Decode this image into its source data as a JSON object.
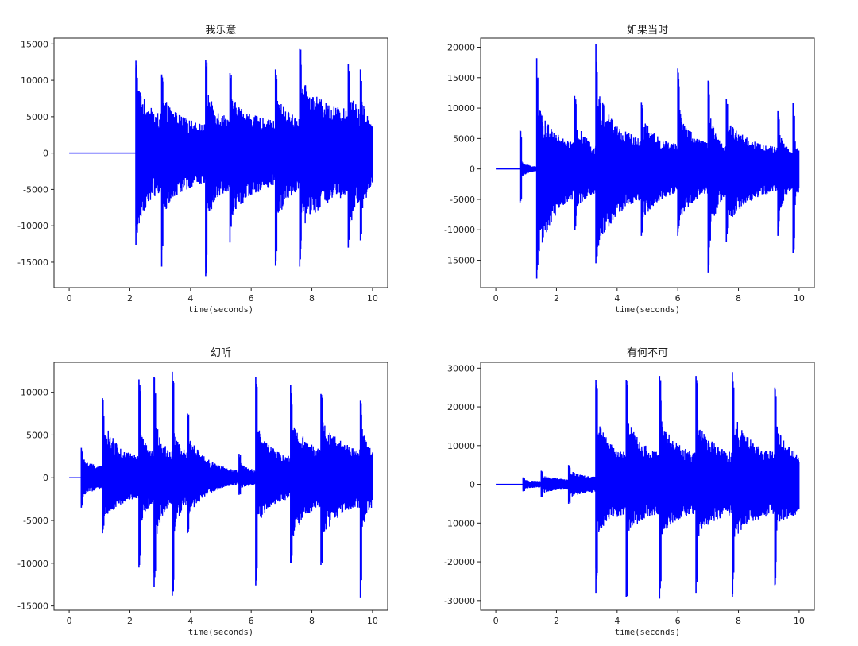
{
  "chart_data": [
    {
      "type": "line",
      "title": "我乐意",
      "xlabel": "time(seconds)",
      "ylabel": "",
      "xlim": [
        -0.5,
        10.5
      ],
      "ylim": [
        -18500,
        15800
      ],
      "xticks": [
        0,
        2,
        4,
        6,
        8,
        10
      ],
      "yticks": [
        15000,
        10000,
        5000,
        0,
        -5000,
        -10000,
        -15000
      ],
      "grid": false,
      "series": [
        {
          "color": "#0000ff",
          "duration": 10,
          "onsets": [
            {
              "t": 2.2,
              "top": 12700,
              "bottom": -12600,
              "sustain_top": 11000,
              "sustain_bottom": -12000,
              "floor": 5000,
              "end": 2.9
            },
            {
              "t": 3.05,
              "top": 10800,
              "bottom": -15600,
              "sustain_top": 8000,
              "sustain_bottom": -9000,
              "floor": 3500,
              "end": 4.5
            },
            {
              "t": 4.5,
              "top": 12800,
              "bottom": -16900,
              "sustain_top": 9000,
              "sustain_bottom": -10000,
              "floor": 4500,
              "end": 5.3
            },
            {
              "t": 5.3,
              "top": 11000,
              "bottom": -12300,
              "sustain_top": 8000,
              "sustain_bottom": -9500,
              "floor": 4000,
              "end": 6.8
            },
            {
              "t": 6.8,
              "top": 11500,
              "bottom": -15500,
              "sustain_top": 8500,
              "sustain_bottom": -10500,
              "floor": 4500,
              "end": 7.6
            },
            {
              "t": 7.6,
              "top": 14300,
              "bottom": -15600,
              "sustain_top": 10500,
              "sustain_bottom": -11000,
              "floor": 5500,
              "end": 9.2
            },
            {
              "t": 9.2,
              "top": 12300,
              "bottom": -13000,
              "sustain_top": 9500,
              "sustain_bottom": -12000,
              "floor": 4500,
              "end": 9.9
            },
            {
              "t": 9.6,
              "top": 11500,
              "bottom": -12000,
              "sustain_top": 9000,
              "sustain_bottom": -11000,
              "floor": 4000,
              "end": 10.0
            }
          ],
          "silence_before": 2.2,
          "noise_floor": 0
        }
      ]
    },
    {
      "type": "line",
      "title": "如果当时",
      "xlabel": "time(seconds)",
      "ylabel": "",
      "xlim": [
        -0.5,
        10.5
      ],
      "ylim": [
        -19500,
        21500
      ],
      "xticks": [
        0,
        2,
        4,
        6,
        8,
        10
      ],
      "yticks": [
        20000,
        15000,
        10000,
        5000,
        0,
        -5000,
        -10000,
        -15000
      ],
      "grid": false,
      "series": [
        {
          "color": "#0000ff",
          "duration": 10,
          "onsets": [
            {
              "t": 0.8,
              "top": 6300,
              "bottom": -5500,
              "sustain_top": 1500,
              "sustain_bottom": -1500,
              "floor": 300,
              "end": 1.35
            },
            {
              "t": 1.35,
              "top": 18200,
              "bottom": -18000,
              "sustain_top": 11000,
              "sustain_bottom": -16000,
              "floor": 3500,
              "end": 2.6
            },
            {
              "t": 2.6,
              "top": 12000,
              "bottom": -10000,
              "sustain_top": 9000,
              "sustain_bottom": -8000,
              "floor": 3500,
              "end": 3.3
            },
            {
              "t": 3.3,
              "top": 20500,
              "bottom": -15500,
              "sustain_top": 14000,
              "sustain_bottom": -14500,
              "floor": 4000,
              "end": 4.8
            },
            {
              "t": 4.8,
              "top": 11000,
              "bottom": -11000,
              "sustain_top": 9000,
              "sustain_bottom": -9000,
              "floor": 3500,
              "end": 6.0
            },
            {
              "t": 6.0,
              "top": 16500,
              "bottom": -11000,
              "sustain_top": 11000,
              "sustain_bottom": -9500,
              "floor": 3500,
              "end": 7.0
            },
            {
              "t": 7.0,
              "top": 14500,
              "bottom": -17000,
              "sustain_top": 10500,
              "sustain_bottom": -15000,
              "floor": 3000,
              "end": 7.6
            },
            {
              "t": 7.6,
              "top": 11500,
              "bottom": -12000,
              "sustain_top": 8500,
              "sustain_bottom": -9500,
              "floor": 3000,
              "end": 9.3
            },
            {
              "t": 9.3,
              "top": 9500,
              "bottom": -11000,
              "sustain_top": 7000,
              "sustain_bottom": -9000,
              "floor": 2500,
              "end": 9.8
            },
            {
              "t": 9.8,
              "top": 10800,
              "bottom": -13800,
              "sustain_top": 8000,
              "sustain_bottom": -10000,
              "floor": 3000,
              "end": 10.0
            }
          ],
          "silence_before": 0.8,
          "noise_floor": 0
        }
      ]
    },
    {
      "type": "line",
      "title": "幻听",
      "xlabel": "time(seconds)",
      "ylabel": "",
      "xlim": [
        -0.5,
        10.5
      ],
      "ylim": [
        -15500,
        13500
      ],
      "xticks": [
        0,
        2,
        4,
        6,
        8,
        10
      ],
      "yticks": [
        10000,
        5000,
        0,
        -5000,
        -10000,
        -15000
      ],
      "grid": false,
      "series": [
        {
          "color": "#0000ff",
          "duration": 10,
          "onsets": [
            {
              "t": 0.4,
              "top": 3500,
              "bottom": -3500,
              "sustain_top": 2500,
              "sustain_bottom": -2500,
              "floor": 1200,
              "end": 1.1
            },
            {
              "t": 1.1,
              "top": 9300,
              "bottom": -6500,
              "sustain_top": 7000,
              "sustain_bottom": -5500,
              "floor": 2000,
              "end": 2.3
            },
            {
              "t": 2.3,
              "top": 11500,
              "bottom": -10500,
              "sustain_top": 6500,
              "sustain_bottom": -6500,
              "floor": 2500,
              "end": 2.8
            },
            {
              "t": 2.8,
              "top": 11800,
              "bottom": -12800,
              "sustain_top": 7500,
              "sustain_bottom": -8500,
              "floor": 2500,
              "end": 3.4
            },
            {
              "t": 3.4,
              "top": 12400,
              "bottom": -13800,
              "sustain_top": 7000,
              "sustain_bottom": -8000,
              "floor": 2500,
              "end": 3.9
            },
            {
              "t": 3.9,
              "top": 7500,
              "bottom": -6500,
              "sustain_top": 5000,
              "sustain_bottom": -4500,
              "floor": 300,
              "end": 5.6
            },
            {
              "t": 5.6,
              "top": 2800,
              "bottom": -2000,
              "sustain_top": 2000,
              "sustain_bottom": -1500,
              "floor": 800,
              "end": 6.15
            },
            {
              "t": 6.15,
              "top": 11800,
              "bottom": -12600,
              "sustain_top": 6500,
              "sustain_bottom": -6000,
              "floor": 2000,
              "end": 7.3
            },
            {
              "t": 7.3,
              "top": 10800,
              "bottom": -10000,
              "sustain_top": 7500,
              "sustain_bottom": -8000,
              "floor": 3000,
              "end": 8.3
            },
            {
              "t": 8.3,
              "top": 9800,
              "bottom": -10200,
              "sustain_top": 7000,
              "sustain_bottom": -7500,
              "floor": 3000,
              "end": 9.6
            },
            {
              "t": 9.6,
              "top": 9000,
              "bottom": -14000,
              "sustain_top": 7000,
              "sustain_bottom": -8000,
              "floor": 3000,
              "end": 10.0
            }
          ],
          "silence_before": 0.4,
          "noise_floor": 0
        }
      ]
    },
    {
      "type": "line",
      "title": "有何不可",
      "xlabel": "time(seconds)",
      "ylabel": "",
      "xlim": [
        -0.5,
        10.5
      ],
      "ylim": [
        -32500,
        31500
      ],
      "xticks": [
        0,
        2,
        4,
        6,
        8,
        10
      ],
      "yticks": [
        30000,
        20000,
        10000,
        0,
        -10000,
        -20000,
        -30000
      ],
      "grid": false,
      "series": [
        {
          "color": "#0000ff",
          "duration": 10,
          "onsets": [
            {
              "t": 0.9,
              "top": 1800,
              "bottom": -1800,
              "sustain_top": 1200,
              "sustain_bottom": -1200,
              "floor": 800,
              "end": 1.5
            },
            {
              "t": 1.5,
              "top": 3500,
              "bottom": -3200,
              "sustain_top": 2500,
              "sustain_bottom": -2500,
              "floor": 1200,
              "end": 2.4
            },
            {
              "t": 2.4,
              "top": 5000,
              "bottom": -5000,
              "sustain_top": 3800,
              "sustain_bottom": -3800,
              "floor": 1800,
              "end": 3.3
            },
            {
              "t": 3.3,
              "top": 27000,
              "bottom": -28000,
              "sustain_top": 18000,
              "sustain_bottom": -14000,
              "floor": 7000,
              "end": 4.3
            },
            {
              "t": 4.3,
              "top": 27000,
              "bottom": -29000,
              "sustain_top": 18000,
              "sustain_bottom": -14000,
              "floor": 7000,
              "end": 5.4
            },
            {
              "t": 5.4,
              "top": 28000,
              "bottom": -29500,
              "sustain_top": 18000,
              "sustain_bottom": -14000,
              "floor": 7000,
              "end": 6.6
            },
            {
              "t": 6.6,
              "top": 28000,
              "bottom": -28000,
              "sustain_top": 18000,
              "sustain_bottom": -15000,
              "floor": 7000,
              "end": 7.8
            },
            {
              "t": 7.8,
              "top": 29000,
              "bottom": -29000,
              "sustain_top": 19000,
              "sustain_bottom": -15000,
              "floor": 7000,
              "end": 9.2
            },
            {
              "t": 9.2,
              "top": 25000,
              "bottom": -26000,
              "sustain_top": 17000,
              "sustain_bottom": -13000,
              "floor": 7000,
              "end": 10.0
            }
          ],
          "silence_before": 0.9,
          "noise_floor": 0
        }
      ]
    }
  ]
}
